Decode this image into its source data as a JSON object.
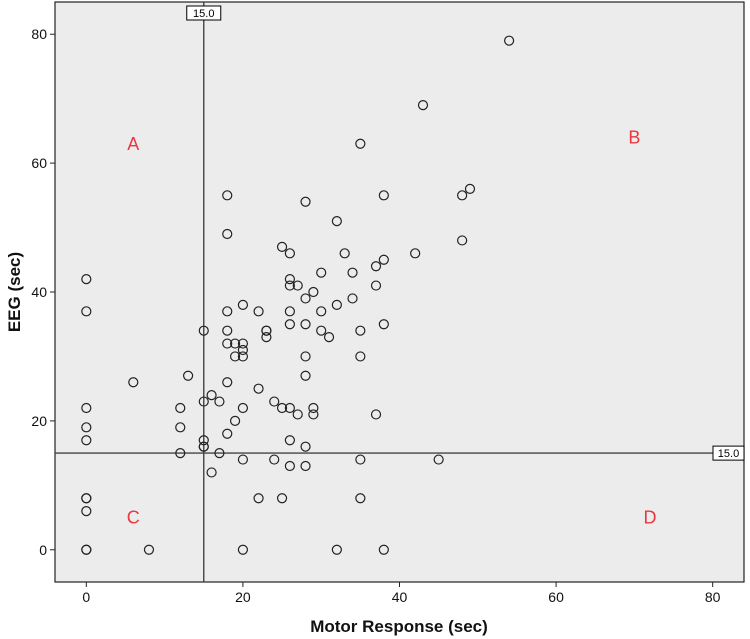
{
  "chart_data": {
    "type": "scatter",
    "title": "",
    "xlabel": "Motor Response (sec)",
    "ylabel": "EEG (sec)",
    "xlim": [
      -4,
      84
    ],
    "ylim": [
      -5,
      85
    ],
    "xticks": [
      0,
      20,
      40,
      60,
      80
    ],
    "yticks": [
      0,
      20,
      40,
      60,
      80
    ],
    "grid": false,
    "marker": "open-circle",
    "colors": {
      "plot_background": "#ececec",
      "marker": "#222222",
      "annotation": "#e8383d",
      "reference_line": "#444444"
    },
    "reference_lines": [
      {
        "orientation": "vertical",
        "value": 15.0,
        "label": "15.0"
      },
      {
        "orientation": "horizontal",
        "value": 15.0,
        "label": "15.0"
      }
    ],
    "annotations": [
      {
        "text": "A",
        "x": 6,
        "y": 63
      },
      {
        "text": "B",
        "x": 70,
        "y": 64
      },
      {
        "text": "C",
        "x": 6,
        "y": 5
      },
      {
        "text": "D",
        "x": 72,
        "y": 5
      }
    ],
    "points": [
      [
        0,
        42
      ],
      [
        0,
        37
      ],
      [
        0,
        22
      ],
      [
        0,
        19
      ],
      [
        0,
        17
      ],
      [
        0,
        8
      ],
      [
        0,
        8
      ],
      [
        0,
        6
      ],
      [
        0,
        0
      ],
      [
        0,
        0
      ],
      [
        6,
        26
      ],
      [
        8,
        0
      ],
      [
        12,
        22
      ],
      [
        12,
        19
      ],
      [
        12,
        15
      ],
      [
        13,
        27
      ],
      [
        15,
        34
      ],
      [
        15,
        23
      ],
      [
        15,
        17
      ],
      [
        15,
        16
      ],
      [
        15,
        16
      ],
      [
        16,
        24
      ],
      [
        16,
        12
      ],
      [
        17,
        23
      ],
      [
        17,
        15
      ],
      [
        18,
        55
      ],
      [
        18,
        49
      ],
      [
        18,
        37
      ],
      [
        18,
        34
      ],
      [
        18,
        32
      ],
      [
        18,
        26
      ],
      [
        18,
        18
      ],
      [
        19,
        32
      ],
      [
        19,
        30
      ],
      [
        19,
        20
      ],
      [
        20,
        38
      ],
      [
        20,
        32
      ],
      [
        20,
        31
      ],
      [
        20,
        30
      ],
      [
        20,
        22
      ],
      [
        20,
        14
      ],
      [
        20,
        0
      ],
      [
        22,
        37
      ],
      [
        22,
        25
      ],
      [
        22,
        8
      ],
      [
        23,
        34
      ],
      [
        23,
        34
      ],
      [
        23,
        33
      ],
      [
        24,
        23
      ],
      [
        24,
        14
      ],
      [
        25,
        47
      ],
      [
        25,
        22
      ],
      [
        25,
        8
      ],
      [
        26,
        46
      ],
      [
        26,
        42
      ],
      [
        26,
        41
      ],
      [
        26,
        37
      ],
      [
        26,
        35
      ],
      [
        26,
        22
      ],
      [
        26,
        17
      ],
      [
        26,
        13
      ],
      [
        27,
        41
      ],
      [
        27,
        21
      ],
      [
        28,
        54
      ],
      [
        28,
        39
      ],
      [
        28,
        35
      ],
      [
        28,
        30
      ],
      [
        28,
        27
      ],
      [
        28,
        16
      ],
      [
        28,
        13
      ],
      [
        29,
        40
      ],
      [
        29,
        22
      ],
      [
        29,
        21
      ],
      [
        30,
        43
      ],
      [
        30,
        37
      ],
      [
        30,
        34
      ],
      [
        31,
        33
      ],
      [
        32,
        51
      ],
      [
        32,
        38
      ],
      [
        32,
        0
      ],
      [
        33,
        46
      ],
      [
        34,
        43
      ],
      [
        34,
        39
      ],
      [
        35,
        63
      ],
      [
        35,
        34
      ],
      [
        35,
        30
      ],
      [
        35,
        14
      ],
      [
        35,
        8
      ],
      [
        37,
        44
      ],
      [
        37,
        41
      ],
      [
        37,
        21
      ],
      [
        38,
        55
      ],
      [
        38,
        45
      ],
      [
        38,
        35
      ],
      [
        38,
        0
      ],
      [
        42,
        46
      ],
      [
        43,
        69
      ],
      [
        45,
        14
      ],
      [
        48,
        55
      ],
      [
        48,
        48
      ],
      [
        49,
        56
      ],
      [
        54,
        79
      ]
    ]
  }
}
